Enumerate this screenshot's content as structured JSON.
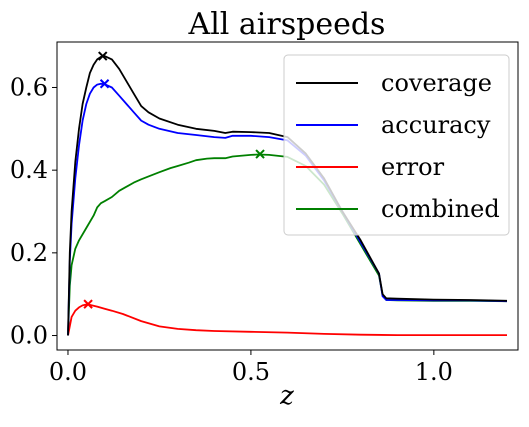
{
  "chart_data": {
    "type": "line",
    "title": "All airspeeds",
    "xlabel": "z",
    "ylabel": "",
    "xlim": [
      -0.03,
      1.23
    ],
    "ylim": [
      -0.035,
      0.71
    ],
    "xticks": [
      0.0,
      0.5,
      1.0
    ],
    "xtick_labels": [
      "0.0",
      "0.5",
      "1.0"
    ],
    "yticks": [
      0.0,
      0.2,
      0.4,
      0.6
    ],
    "ytick_labels": [
      "0.0",
      "0.2",
      "0.4",
      "0.6"
    ],
    "grid": false,
    "legend_position": "upper right",
    "series": [
      {
        "name": "coverage",
        "color": "#000000",
        "x": [
          0,
          0.005,
          0.01,
          0.02,
          0.03,
          0.04,
          0.05,
          0.06,
          0.07,
          0.08,
          0.09,
          0.1,
          0.12,
          0.14,
          0.16,
          0.18,
          0.2,
          0.22,
          0.25,
          0.3,
          0.35,
          0.4,
          0.43,
          0.45,
          0.5,
          0.55,
          0.6,
          0.65,
          0.7,
          0.75,
          0.8,
          0.85,
          0.86,
          0.87,
          0.9,
          1.0,
          1.1,
          1.2
        ],
        "y": [
          0,
          0.2,
          0.3,
          0.42,
          0.5,
          0.56,
          0.6,
          0.635,
          0.655,
          0.668,
          0.674,
          0.676,
          0.668,
          0.645,
          0.615,
          0.585,
          0.555,
          0.54,
          0.525,
          0.51,
          0.5,
          0.495,
          0.49,
          0.493,
          0.492,
          0.49,
          0.48,
          0.44,
          0.38,
          0.3,
          0.23,
          0.15,
          0.1,
          0.09,
          0.089,
          0.087,
          0.086,
          0.084
        ],
        "marker": {
          "x": 0.095,
          "y": 0.676
        }
      },
      {
        "name": "accuracy",
        "color": "#0000ff",
        "x": [
          0,
          0.005,
          0.01,
          0.02,
          0.03,
          0.04,
          0.05,
          0.06,
          0.07,
          0.08,
          0.09,
          0.1,
          0.12,
          0.14,
          0.16,
          0.18,
          0.2,
          0.22,
          0.25,
          0.3,
          0.35,
          0.4,
          0.43,
          0.45,
          0.5,
          0.55,
          0.6,
          0.65,
          0.7,
          0.75,
          0.8,
          0.85,
          0.86,
          0.87,
          0.9,
          1.0,
          1.1,
          1.2
        ],
        "y": [
          0,
          0.18,
          0.27,
          0.38,
          0.46,
          0.52,
          0.56,
          0.585,
          0.6,
          0.607,
          0.609,
          0.608,
          0.6,
          0.58,
          0.56,
          0.54,
          0.52,
          0.51,
          0.5,
          0.49,
          0.485,
          0.48,
          0.478,
          0.483,
          0.483,
          0.48,
          0.472,
          0.435,
          0.375,
          0.3,
          0.225,
          0.15,
          0.095,
          0.086,
          0.086,
          0.085,
          0.085,
          0.083
        ],
        "marker": {
          "x": 0.1,
          "y": 0.609
        }
      },
      {
        "name": "error",
        "color": "#ff0000",
        "x": [
          0,
          0.01,
          0.02,
          0.03,
          0.04,
          0.05,
          0.06,
          0.08,
          0.1,
          0.12,
          0.15,
          0.2,
          0.25,
          0.3,
          0.35,
          0.4,
          0.5,
          0.6,
          0.7,
          0.8,
          0.9,
          1.0,
          1.1,
          1.2
        ],
        "y": [
          0,
          0.045,
          0.06,
          0.068,
          0.073,
          0.075,
          0.074,
          0.07,
          0.065,
          0.06,
          0.052,
          0.035,
          0.022,
          0.016,
          0.013,
          0.011,
          0.009,
          0.007,
          0.004,
          0.002,
          0.001,
          0.001,
          0.001,
          0.001
        ],
        "marker": {
          "x": 0.055,
          "y": 0.076
        }
      },
      {
        "name": "combined",
        "color": "#008000",
        "x": [
          0,
          0.005,
          0.01,
          0.02,
          0.03,
          0.05,
          0.07,
          0.08,
          0.09,
          0.1,
          0.12,
          0.14,
          0.16,
          0.18,
          0.2,
          0.22,
          0.25,
          0.28,
          0.3,
          0.33,
          0.35,
          0.38,
          0.4,
          0.43,
          0.45,
          0.5,
          0.52,
          0.55,
          0.6,
          0.65,
          0.7,
          0.75,
          0.8,
          0.85,
          0.86,
          0.87,
          0.9,
          1.0,
          1.1,
          1.2
        ],
        "y": [
          0,
          0.12,
          0.17,
          0.21,
          0.23,
          0.26,
          0.29,
          0.31,
          0.32,
          0.325,
          0.335,
          0.35,
          0.36,
          0.37,
          0.378,
          0.385,
          0.395,
          0.405,
          0.41,
          0.418,
          0.424,
          0.428,
          0.429,
          0.429,
          0.433,
          0.437,
          0.438,
          0.437,
          0.432,
          0.41,
          0.365,
          0.295,
          0.22,
          0.145,
          0.098,
          0.086,
          0.085,
          0.084,
          0.084,
          0.083
        ],
        "marker": {
          "x": 0.525,
          "y": 0.439
        }
      }
    ]
  }
}
